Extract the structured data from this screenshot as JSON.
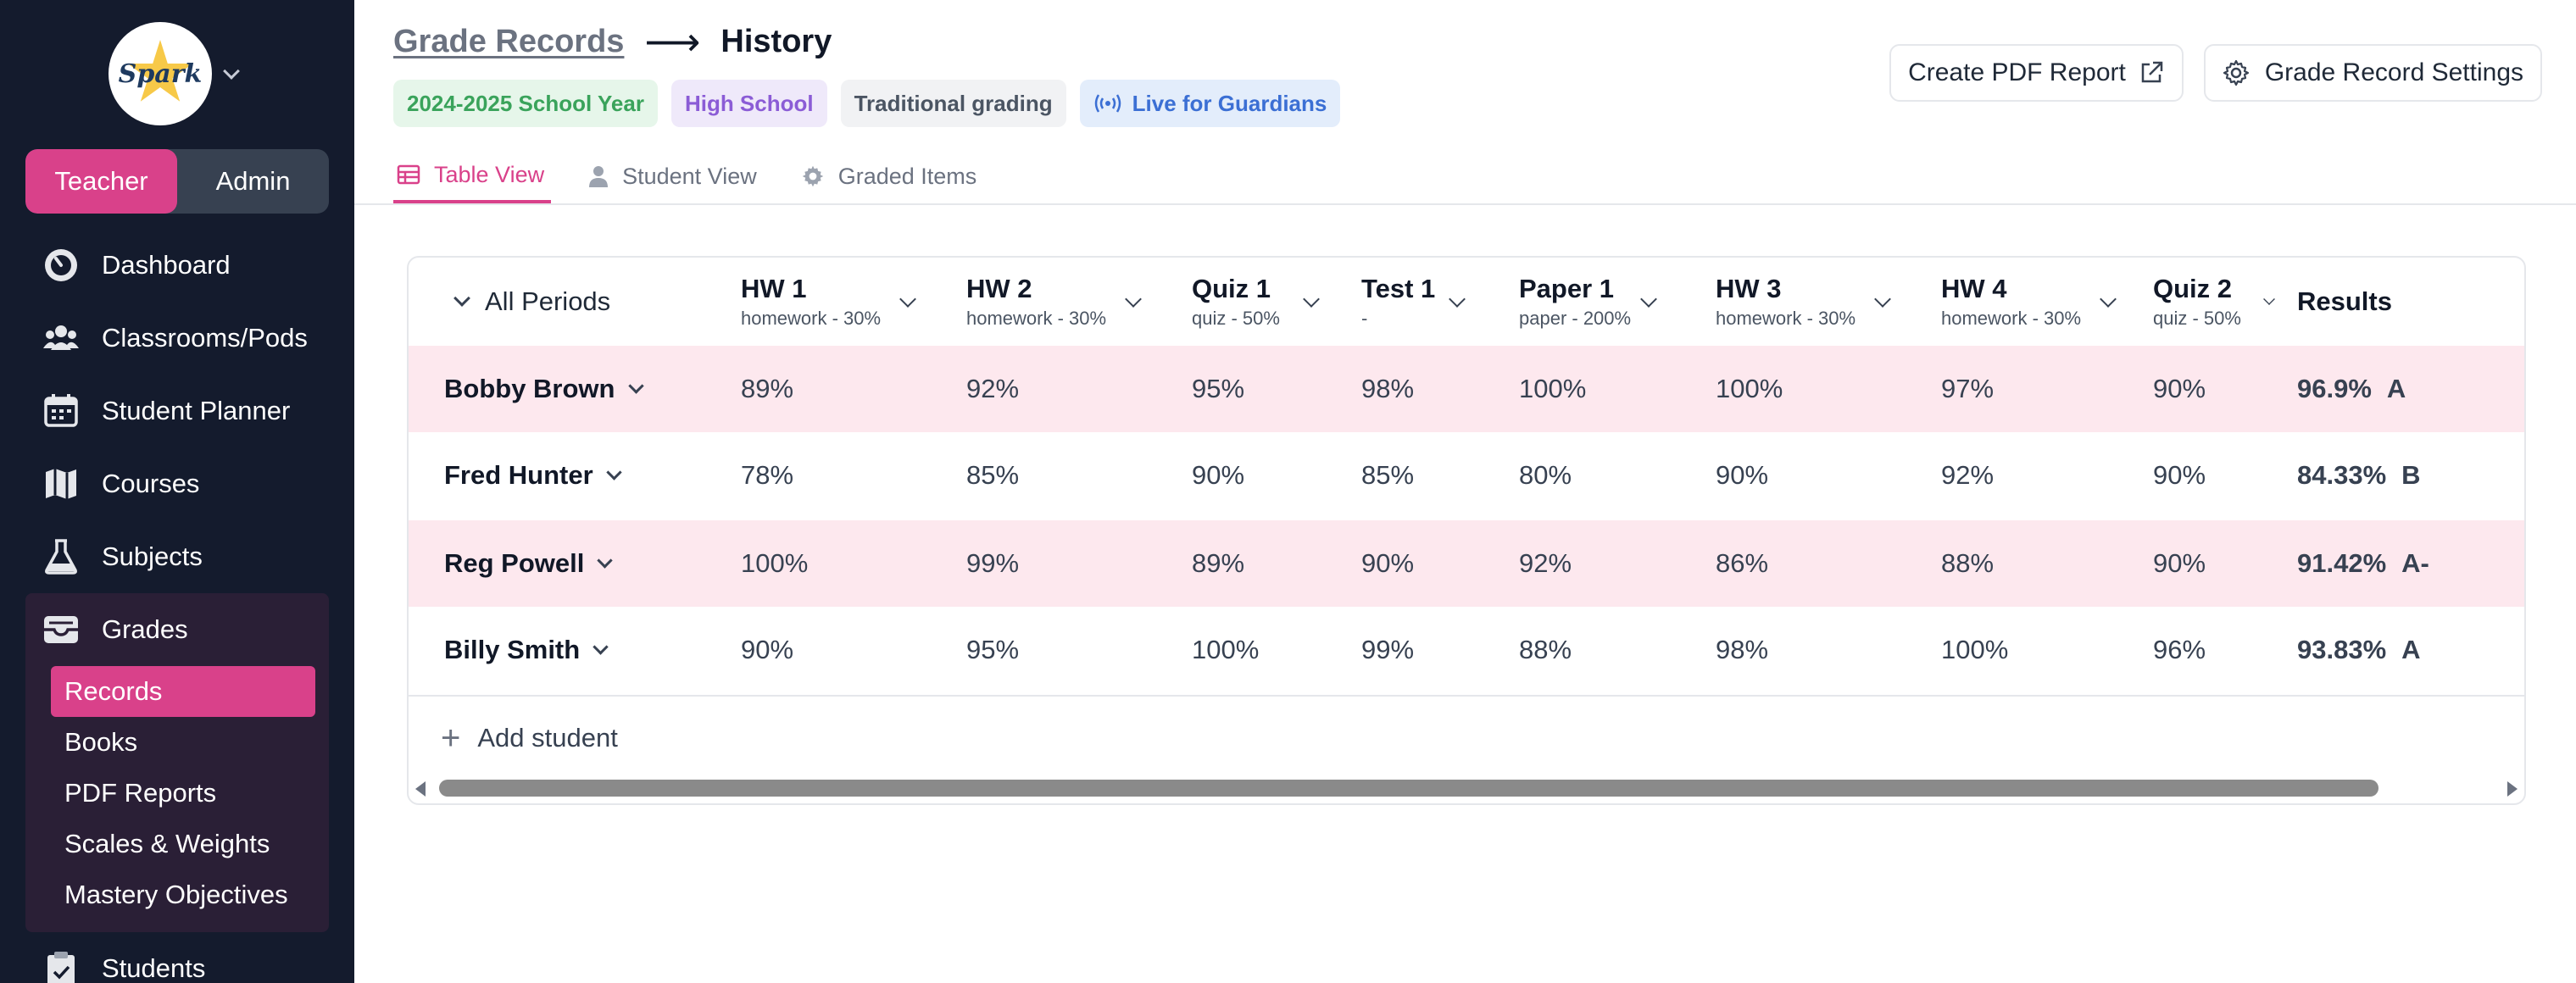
{
  "app": {
    "logo_text": "Spark",
    "role_toggle": {
      "teacher": "Teacher",
      "admin": "Admin",
      "active": "Teacher"
    }
  },
  "sidebar": {
    "items": [
      {
        "label": "Dashboard",
        "icon": "dashboard-icon"
      },
      {
        "label": "Classrooms/Pods",
        "icon": "users-icon"
      },
      {
        "label": "Student Planner",
        "icon": "calendar-icon"
      },
      {
        "label": "Courses",
        "icon": "map-icon"
      },
      {
        "label": "Subjects",
        "icon": "flask-icon"
      },
      {
        "label": "Grades",
        "icon": "inbox-icon"
      }
    ],
    "grades_sub": [
      "Records",
      "Books",
      "PDF Reports",
      "Scales & Weights",
      "Mastery Objectives"
    ],
    "active_sub": "Records",
    "after": {
      "label": "Students",
      "icon": "clipboard-icon"
    }
  },
  "header": {
    "breadcrumb_link": "Grade Records",
    "arrow": "⟶",
    "current": "History",
    "badges": {
      "year": "2024-2025 School Year",
      "level": "High School",
      "grading": "Traditional grading",
      "live": "Live for Guardians"
    },
    "actions": {
      "pdf": "Create PDF Report",
      "settings": "Grade Record Settings"
    },
    "tabs": {
      "table": "Table View",
      "student": "Student View",
      "graded": "Graded Items"
    }
  },
  "table": {
    "periods_label": "All Periods",
    "columns": [
      {
        "title": "HW 1",
        "sub": "homework - 30%"
      },
      {
        "title": "HW 2",
        "sub": "homework - 30%"
      },
      {
        "title": "Quiz 1",
        "sub": "quiz - 50%"
      },
      {
        "title": "Test 1",
        "sub": "-"
      },
      {
        "title": "Paper 1",
        "sub": "paper - 200%"
      },
      {
        "title": "HW 3",
        "sub": "homework - 30%"
      },
      {
        "title": "HW 4",
        "sub": "homework - 30%"
      },
      {
        "title": "Quiz 2",
        "sub": "quiz - 50%"
      }
    ],
    "results_label": "Results",
    "rows": [
      {
        "name": "Bobby Brown",
        "scores": [
          "89%",
          "92%",
          "95%",
          "98%",
          "100%",
          "100%",
          "97%",
          "90%"
        ],
        "result": "96.9%",
        "letter": "A"
      },
      {
        "name": "Fred Hunter",
        "scores": [
          "78%",
          "85%",
          "90%",
          "85%",
          "80%",
          "90%",
          "92%",
          "90%"
        ],
        "result": "84.33%",
        "letter": "B"
      },
      {
        "name": "Reg Powell",
        "scores": [
          "100%",
          "99%",
          "89%",
          "90%",
          "92%",
          "86%",
          "88%",
          "90%"
        ],
        "result": "91.42%",
        "letter": "A-"
      },
      {
        "name": "Billy Smith",
        "scores": [
          "90%",
          "95%",
          "100%",
          "99%",
          "88%",
          "98%",
          "100%",
          "96%"
        ],
        "result": "93.83%",
        "letter": "A"
      }
    ],
    "add_student": "Add student"
  },
  "colors": {
    "accent": "#d9418a",
    "sidebar": "#141b2d",
    "row_highlight": "#fde8ee"
  }
}
